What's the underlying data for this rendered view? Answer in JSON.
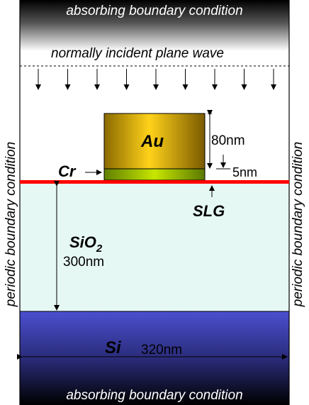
{
  "boundaries": {
    "top": "absorbing boundary condition",
    "bottom": "absorbing boundary condition",
    "left": "periodic boundary condition",
    "right": "periodic boundary condition"
  },
  "source": {
    "label": "normally incident plane wave",
    "arrow_count": 9
  },
  "layers": {
    "au": {
      "label": "Au",
      "thickness": "80nm",
      "color": "#c8a000"
    },
    "cr": {
      "label": "Cr",
      "thickness": "5nm",
      "color": "#9fc400"
    },
    "slg": {
      "label": "SLG",
      "color": "#ff0000"
    },
    "sio2": {
      "label_main": "SiO",
      "label_sub": "2",
      "thickness": "300nm",
      "color": "#e6f8f3"
    },
    "si": {
      "label": "Si",
      "width": "320nm",
      "color": "#4b4fcf"
    }
  }
}
